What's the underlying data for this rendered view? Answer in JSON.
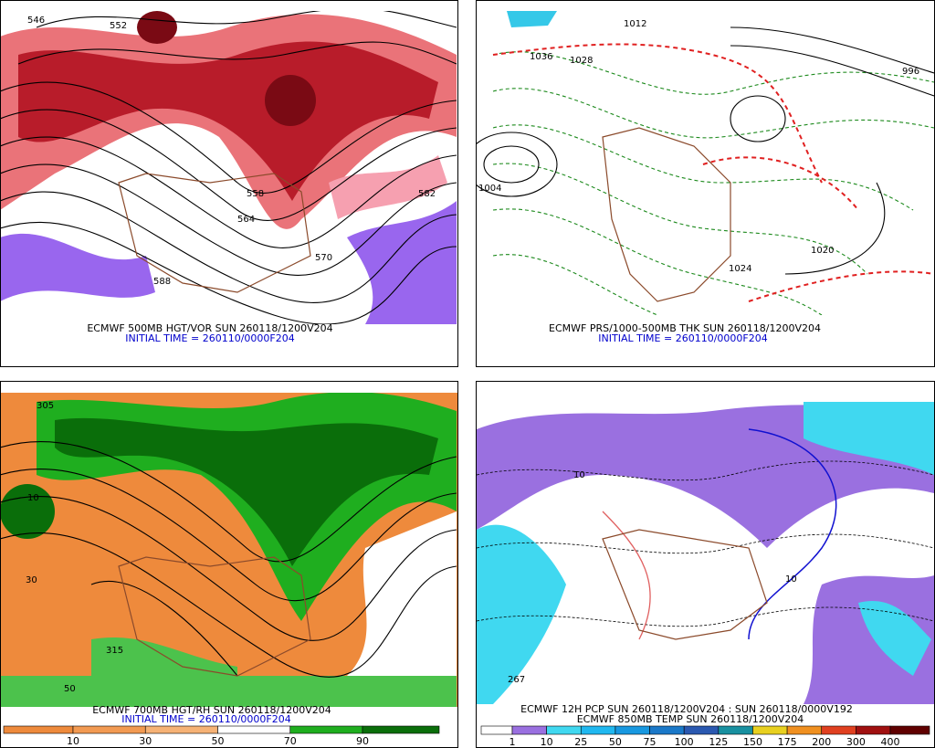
{
  "panels": [
    {
      "caption": "ECMWF 500MB HGT/VOR SUN 260118/1200V204",
      "subcaption": "INITIAL TIME = 260110/0000F204",
      "contour_labels": [
        "546",
        "552",
        "558",
        "564",
        "570",
        "582",
        "588"
      ]
    },
    {
      "caption": "ECMWF PRS/1000-500MB THK SUN 260118/1200V204",
      "subcaption": "INITIAL TIME = 260110/0000F204",
      "contour_labels": [
        "1012",
        "1036",
        "1028",
        "1004",
        "996",
        "1020",
        "1024"
      ]
    },
    {
      "caption": "ECMWF 700MB HGT/RH SUN 260118/1200V204",
      "subcaption": "INITIAL TIME = 260110/0000F204",
      "contour_labels": [
        "305",
        "315",
        "50",
        "10",
        "30"
      ],
      "colorbar": {
        "labels": [
          "10",
          "30",
          "50",
          "70",
          "90"
        ],
        "colors": [
          "#ee8a3c",
          "#f29a52",
          "#f6b276",
          "#ffffff",
          "#1fae1f",
          "#0a6e0a"
        ]
      }
    },
    {
      "caption": "ECMWF 12H PCP SUN 260118/1200V204 : SUN 260118/0000V192",
      "subcaption": "ECMWF 850MB TEMP SUN 260118/1200V204",
      "contour_labels": [
        "10",
        "267",
        "10"
      ],
      "colorbar": {
        "labels": [
          "1",
          "10",
          "25",
          "50",
          "75",
          "100",
          "125",
          "150",
          "175",
          "200",
          "300",
          "400"
        ],
        "colors": [
          "#ffffff",
          "#9a70e0",
          "#40d8f0",
          "#20b8f0",
          "#1898e0",
          "#1a78c8",
          "#2a58b0",
          "#1890a0",
          "#e8d020",
          "#f09020",
          "#e04020",
          "#a01010",
          "#600000"
        ]
      }
    }
  ]
}
